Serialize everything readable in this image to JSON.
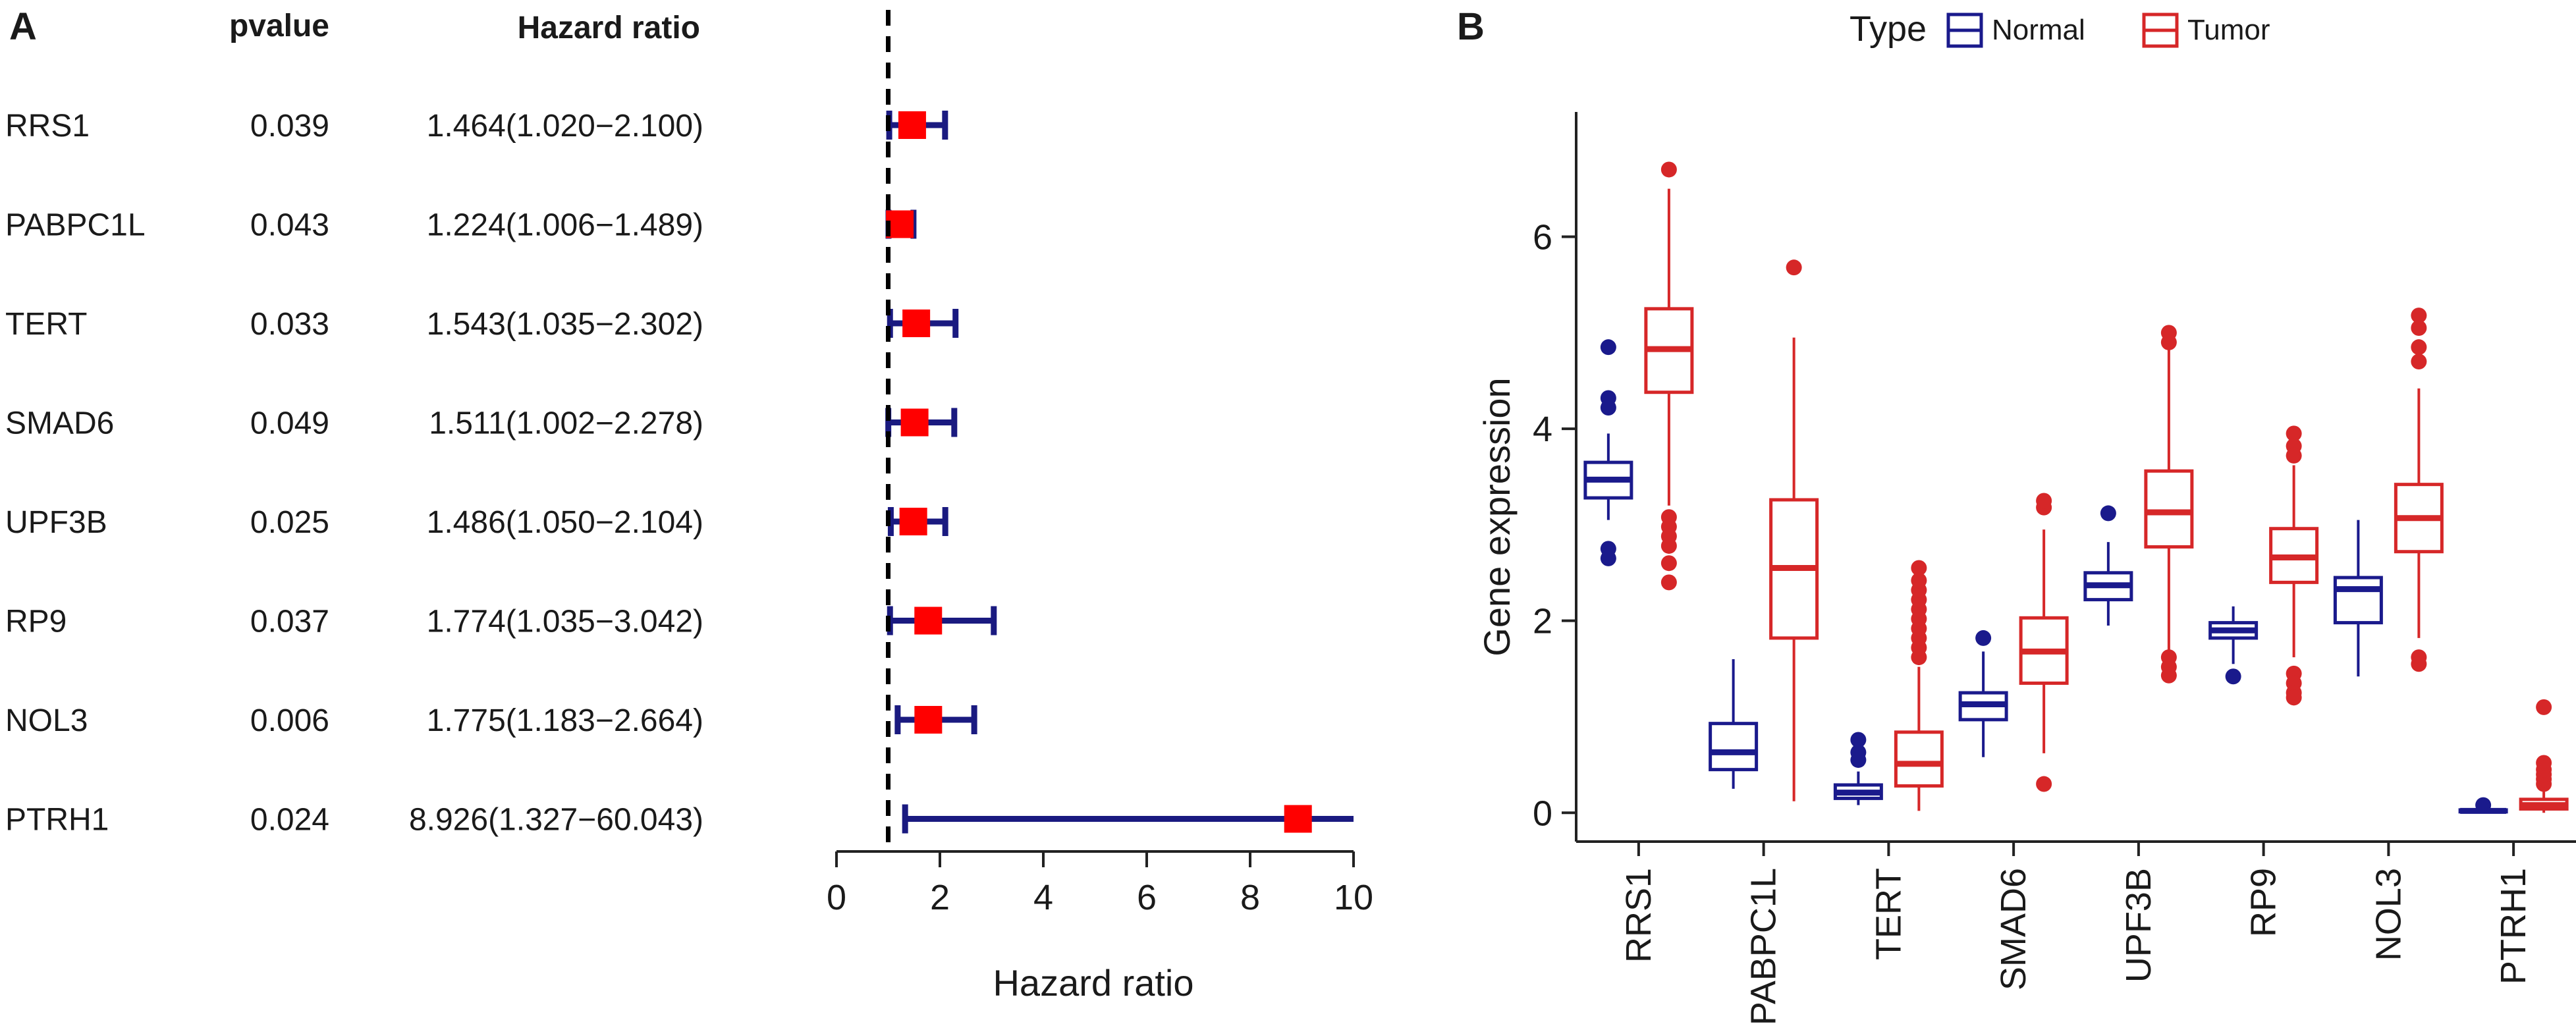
{
  "chart_data": [
    {
      "panel": "A",
      "type": "forest",
      "columns": {
        "gene": "",
        "pvalue": "pvalue",
        "hr": "Hazard ratio"
      },
      "rows": [
        {
          "gene": "RRS1",
          "pvalue": "0.039",
          "hr_text": "1.464(1.020−2.100)",
          "hr": 1.464,
          "lo": 1.02,
          "hi": 2.1
        },
        {
          "gene": "PABPC1L",
          "pvalue": "0.043",
          "hr_text": "1.224(1.006−1.489)",
          "hr": 1.224,
          "lo": 1.006,
          "hi": 1.489
        },
        {
          "gene": "TERT",
          "pvalue": "0.033",
          "hr_text": "1.543(1.035−2.302)",
          "hr": 1.543,
          "lo": 1.035,
          "hi": 2.302
        },
        {
          "gene": "SMAD6",
          "pvalue": "0.049",
          "hr_text": "1.511(1.002−2.278)",
          "hr": 1.511,
          "lo": 1.002,
          "hi": 2.278
        },
        {
          "gene": "UPF3B",
          "pvalue": "0.025",
          "hr_text": "1.486(1.050−2.104)",
          "hr": 1.486,
          "lo": 1.05,
          "hi": 2.104
        },
        {
          "gene": "RP9",
          "pvalue": "0.037",
          "hr_text": "1.774(1.035−3.042)",
          "hr": 1.774,
          "lo": 1.035,
          "hi": 3.042
        },
        {
          "gene": "NOL3",
          "pvalue": "0.006",
          "hr_text": "1.775(1.183−2.664)",
          "hr": 1.775,
          "lo": 1.183,
          "hi": 2.664
        },
        {
          "gene": "PTRH1",
          "pvalue": "0.024",
          "hr_text": "8.926(1.327−60.043)",
          "hr": 8.926,
          "lo": 1.327,
          "hi": 60.043
        }
      ],
      "xlim": [
        0,
        10
      ],
      "xticks": [
        0,
        2,
        4,
        6,
        8,
        10
      ],
      "reference_line": 1,
      "xlabel": "Hazard ratio",
      "colors": {
        "ci": "#1a1a80",
        "point": "#ff0000",
        "ref": "#000000"
      }
    },
    {
      "panel": "B",
      "type": "box",
      "ylabel": "Gene expression",
      "ylim": [
        -0.3,
        7.3
      ],
      "yticks": [
        0,
        2,
        4,
        6
      ],
      "legend": {
        "title": "Type",
        "position": "top",
        "entries": [
          {
            "name": "Normal",
            "color": "#1a1a8c"
          },
          {
            "name": "Tumor",
            "color": "#d62728"
          }
        ]
      },
      "categories": [
        "RRS1",
        "PABPC1L",
        "TERT",
        "SMAD6",
        "UPF3B",
        "RP9",
        "NOL3",
        "PTRH1"
      ],
      "series": [
        {
          "name": "Normal",
          "color": "#1a1a8c",
          "boxes": [
            {
              "min": 3.05,
              "q1": 3.28,
              "median": 3.47,
              "q3": 3.65,
              "max": 3.95,
              "outliers": [
                4.85,
                4.32,
                4.22,
                2.75,
                2.65
              ]
            },
            {
              "min": 0.25,
              "q1": 0.45,
              "median": 0.63,
              "q3": 0.93,
              "max": 1.6,
              "outliers": []
            },
            {
              "min": 0.08,
              "q1": 0.15,
              "median": 0.21,
              "q3": 0.29,
              "max": 0.43,
              "outliers": [
                0.55,
                0.63,
                0.76
              ]
            },
            {
              "min": 0.58,
              "q1": 0.97,
              "median": 1.13,
              "q3": 1.25,
              "max": 1.68,
              "outliers": [
                1.82
              ]
            },
            {
              "min": 1.95,
              "q1": 2.22,
              "median": 2.37,
              "q3": 2.5,
              "max": 2.82,
              "outliers": [
                3.12
              ]
            },
            {
              "min": 1.55,
              "q1": 1.82,
              "median": 1.9,
              "q3": 1.98,
              "max": 2.15,
              "outliers": [
                1.42
              ]
            },
            {
              "min": 1.42,
              "q1": 1.98,
              "median": 2.33,
              "q3": 2.45,
              "max": 3.05,
              "outliers": []
            },
            {
              "min": 0.0,
              "q1": 0.01,
              "median": 0.02,
              "q3": 0.03,
              "max": 0.04,
              "outliers": [
                0.08
              ]
            }
          ]
        },
        {
          "name": "Tumor",
          "color": "#d62728",
          "boxes": [
            {
              "min": 3.2,
              "q1": 4.38,
              "median": 4.83,
              "q3": 5.25,
              "max": 6.5,
              "outliers": [
                6.7,
                3.08,
                2.98,
                2.88,
                2.78,
                2.6,
                2.4
              ]
            },
            {
              "min": 0.12,
              "q1": 1.82,
              "median": 2.55,
              "q3": 3.26,
              "max": 4.95,
              "outliers": [
                5.68
              ]
            },
            {
              "min": 0.02,
              "q1": 0.28,
              "median": 0.51,
              "q3": 0.84,
              "max": 1.52,
              "outliers": [
                1.62,
                1.72,
                1.82,
                1.92,
                2.02,
                2.12,
                2.22,
                2.32,
                2.42,
                2.55
              ]
            },
            {
              "min": 0.62,
              "q1": 1.35,
              "median": 1.68,
              "q3": 2.03,
              "max": 2.95,
              "outliers": [
                3.18,
                3.25,
                0.3
              ]
            },
            {
              "min": 1.68,
              "q1": 2.77,
              "median": 3.13,
              "q3": 3.56,
              "max": 4.82,
              "outliers": [
                5.0,
                4.9,
                1.62,
                1.52,
                1.43
              ]
            },
            {
              "min": 1.62,
              "q1": 2.4,
              "median": 2.66,
              "q3": 2.96,
              "max": 3.62,
              "outliers": [
                3.95,
                3.82,
                3.72,
                1.45,
                1.35,
                1.25,
                1.2
              ]
            },
            {
              "min": 1.82,
              "q1": 2.72,
              "median": 3.07,
              "q3": 3.42,
              "max": 4.42,
              "outliers": [
                5.18,
                5.05,
                4.85,
                4.7,
                1.62,
                1.55
              ]
            },
            {
              "min": 0.0,
              "q1": 0.04,
              "median": 0.08,
              "q3": 0.14,
              "max": 0.26,
              "outliers": [
                0.3,
                0.35,
                0.4,
                0.45,
                0.52,
                1.1
              ]
            }
          ]
        }
      ]
    }
  ]
}
